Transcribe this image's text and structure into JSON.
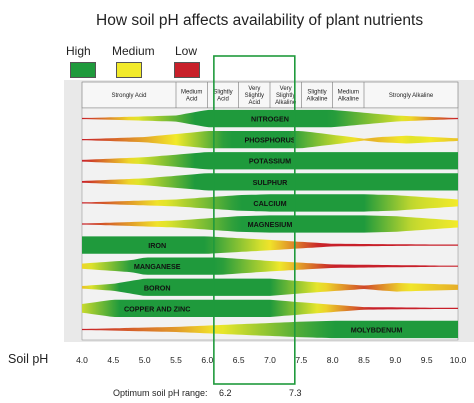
{
  "title": "How soil pH affects availability of plant nutrients",
  "legend": [
    {
      "label": "High",
      "color": "#1f9a3c"
    },
    {
      "label": "Medium",
      "color": "#f2ea2a"
    },
    {
      "label": "Low",
      "color": "#c8202a"
    }
  ],
  "soil_ph_label": "Soil pH",
  "optimum": {
    "label": "Optimum soil pH range:",
    "low": "6.2",
    "high": "7.3"
  },
  "chart_data": {
    "type": "band",
    "x_ticks": [
      "4.0",
      "4.5",
      "5.0",
      "5.5",
      "6.0",
      "6.5",
      "7.0",
      "7.5",
      "8.0",
      "8.5",
      "9.0",
      "9.5",
      "10.0"
    ],
    "xlim": [
      4.0,
      10.0
    ],
    "highlight_range": [
      6.2,
      7.3
    ],
    "header_zones": [
      {
        "lines": [
          "Strongly Acid"
        ],
        "from": 4.0,
        "to": 5.5
      },
      {
        "lines": [
          "Medium",
          "Acid"
        ],
        "from": 5.5,
        "to": 6.0
      },
      {
        "lines": [
          "Slightly",
          "Acid"
        ],
        "from": 6.0,
        "to": 6.5
      },
      {
        "lines": [
          "Very",
          "Slightly",
          "Acid"
        ],
        "from": 6.5,
        "to": 7.0
      },
      {
        "lines": [
          "Very",
          "Slightly",
          "Alkaline"
        ],
        "from": 7.0,
        "to": 7.5
      },
      {
        "lines": [
          "Slightly",
          "Alkaline"
        ],
        "from": 7.5,
        "to": 8.0
      },
      {
        "lines": [
          "Medium",
          "Alkaline"
        ],
        "from": 8.0,
        "to": 8.5
      },
      {
        "lines": [
          "Strongly Alkaline"
        ],
        "from": 8.5,
        "to": 10.0
      }
    ],
    "nutrients": [
      {
        "name": "NITROGEN",
        "label_ph": 7.0,
        "width": [
          [
            4.0,
            0.05
          ],
          [
            5.5,
            0.35
          ],
          [
            6.0,
            1
          ],
          [
            8.0,
            1
          ],
          [
            9.0,
            0.35
          ],
          [
            10.0,
            0.05
          ]
        ],
        "availability": [
          [
            4.0,
            0
          ],
          [
            5.0,
            0.6
          ],
          [
            5.8,
            1
          ],
          [
            8.0,
            1
          ],
          [
            9.0,
            0.6
          ],
          [
            10.0,
            0
          ]
        ]
      },
      {
        "name": "PHOSPHORUS",
        "label_ph": 7.0,
        "width": [
          [
            4.0,
            0.05
          ],
          [
            5.0,
            0.3
          ],
          [
            6.0,
            1
          ],
          [
            7.5,
            1
          ],
          [
            8.3,
            0.3
          ],
          [
            8.5,
            0.1
          ],
          [
            8.75,
            0.3
          ],
          [
            9.2,
            0.45
          ],
          [
            10.0,
            0.15
          ]
        ],
        "availability": [
          [
            4.0,
            0
          ],
          [
            5.5,
            0.5
          ],
          [
            6.3,
            1
          ],
          [
            7.3,
            1
          ],
          [
            8.3,
            0.5
          ],
          [
            8.6,
            0.35
          ],
          [
            9.3,
            0.55
          ],
          [
            10.0,
            0.4
          ]
        ]
      },
      {
        "name": "POTASSIUM",
        "label_ph": 7.0,
        "width": [
          [
            4.0,
            0.1
          ],
          [
            5.0,
            0.4
          ],
          [
            6.0,
            1
          ],
          [
            10.0,
            1
          ]
        ],
        "availability": [
          [
            4.0,
            0
          ],
          [
            5.0,
            0.6
          ],
          [
            5.8,
            1
          ],
          [
            10.0,
            1
          ]
        ]
      },
      {
        "name": "SULPHUR",
        "label_ph": 7.0,
        "width": [
          [
            4.0,
            0.1
          ],
          [
            5.0,
            0.4
          ],
          [
            6.0,
            1
          ],
          [
            10.0,
            1
          ]
        ],
        "availability": [
          [
            4.0,
            0
          ],
          [
            5.0,
            0.6
          ],
          [
            5.8,
            1
          ],
          [
            10.0,
            1
          ]
        ]
      },
      {
        "name": "CALCIUM",
        "label_ph": 7.0,
        "width": [
          [
            4.0,
            0.05
          ],
          [
            5.5,
            0.4
          ],
          [
            6.5,
            0.9
          ],
          [
            7.0,
            1
          ],
          [
            8.5,
            1
          ],
          [
            9.0,
            0.9
          ],
          [
            10.0,
            0.4
          ]
        ],
        "availability": [
          [
            4.0,
            0
          ],
          [
            5.5,
            0.6
          ],
          [
            6.5,
            1
          ],
          [
            8.5,
            1
          ],
          [
            9.3,
            0.6
          ],
          [
            10.0,
            0.5
          ]
        ]
      },
      {
        "name": "MAGNESIUM",
        "label_ph": 7.0,
        "width": [
          [
            4.0,
            0.05
          ],
          [
            5.5,
            0.4
          ],
          [
            6.5,
            0.9
          ],
          [
            7.0,
            1
          ],
          [
            8.5,
            1
          ],
          [
            9.0,
            0.9
          ],
          [
            10.0,
            0.4
          ]
        ],
        "availability": [
          [
            4.0,
            0
          ],
          [
            5.5,
            0.6
          ],
          [
            6.5,
            1
          ],
          [
            8.5,
            1
          ],
          [
            9.3,
            0.6
          ],
          [
            10.0,
            0.5
          ]
        ]
      },
      {
        "name": "IRON",
        "label_ph": 5.2,
        "width": [
          [
            4.0,
            1
          ],
          [
            6.0,
            1
          ],
          [
            7.0,
            0.6
          ],
          [
            8.0,
            0.15
          ],
          [
            10.0,
            0.05
          ]
        ],
        "availability": [
          [
            4.0,
            1
          ],
          [
            6.0,
            1
          ],
          [
            6.8,
            0.6
          ],
          [
            7.8,
            0
          ],
          [
            10.0,
            0
          ]
        ]
      },
      {
        "name": "MANGANESE",
        "label_ph": 5.2,
        "width": [
          [
            4.0,
            0.3
          ],
          [
            4.8,
            0.7
          ],
          [
            5.0,
            1
          ],
          [
            6.2,
            1
          ],
          [
            7.0,
            0.6
          ],
          [
            8.0,
            0.2
          ],
          [
            10.0,
            0.05
          ]
        ],
        "availability": [
          [
            4.0,
            0.45
          ],
          [
            4.8,
            1
          ],
          [
            6.2,
            1
          ],
          [
            7.0,
            0.6
          ],
          [
            8.0,
            0
          ],
          [
            10.0,
            0
          ]
        ]
      },
      {
        "name": "BORON",
        "label_ph": 5.2,
        "width": [
          [
            4.0,
            0.15
          ],
          [
            4.5,
            0.4
          ],
          [
            5.0,
            1
          ],
          [
            7.0,
            1
          ],
          [
            7.5,
            0.7
          ],
          [
            8.5,
            0.2
          ],
          [
            9.0,
            0.5
          ],
          [
            9.5,
            0.4
          ],
          [
            10.0,
            0.3
          ]
        ],
        "availability": [
          [
            4.0,
            0.4
          ],
          [
            4.6,
            1
          ],
          [
            7.0,
            1
          ],
          [
            7.8,
            0.5
          ],
          [
            8.5,
            0.1
          ],
          [
            9.2,
            0.5
          ],
          [
            10.0,
            0.35
          ]
        ]
      },
      {
        "name": "COPPER AND ZINC",
        "label_ph": 5.2,
        "width": [
          [
            4.0,
            0.5
          ],
          [
            4.5,
            1
          ],
          [
            7.0,
            1
          ],
          [
            7.5,
            0.7
          ],
          [
            8.5,
            0.15
          ],
          [
            10.0,
            0.05
          ]
        ],
        "availability": [
          [
            4.0,
            0.6
          ],
          [
            4.6,
            1
          ],
          [
            7.0,
            1
          ],
          [
            7.8,
            0.5
          ],
          [
            8.6,
            0
          ],
          [
            10.0,
            0
          ]
        ]
      },
      {
        "name": "MOLYBDENUM",
        "label_ph": 8.7,
        "width": [
          [
            4.0,
            0.05
          ],
          [
            5.5,
            0.3
          ],
          [
            6.5,
            0.6
          ],
          [
            7.5,
            0.9
          ],
          [
            8.0,
            1
          ],
          [
            10.0,
            1
          ]
        ],
        "availability": [
          [
            4.0,
            0
          ],
          [
            5.5,
            0.3
          ],
          [
            6.5,
            0.6
          ],
          [
            7.5,
            0.9
          ],
          [
            8.0,
            1
          ],
          [
            10.0,
            1
          ]
        ]
      }
    ]
  }
}
